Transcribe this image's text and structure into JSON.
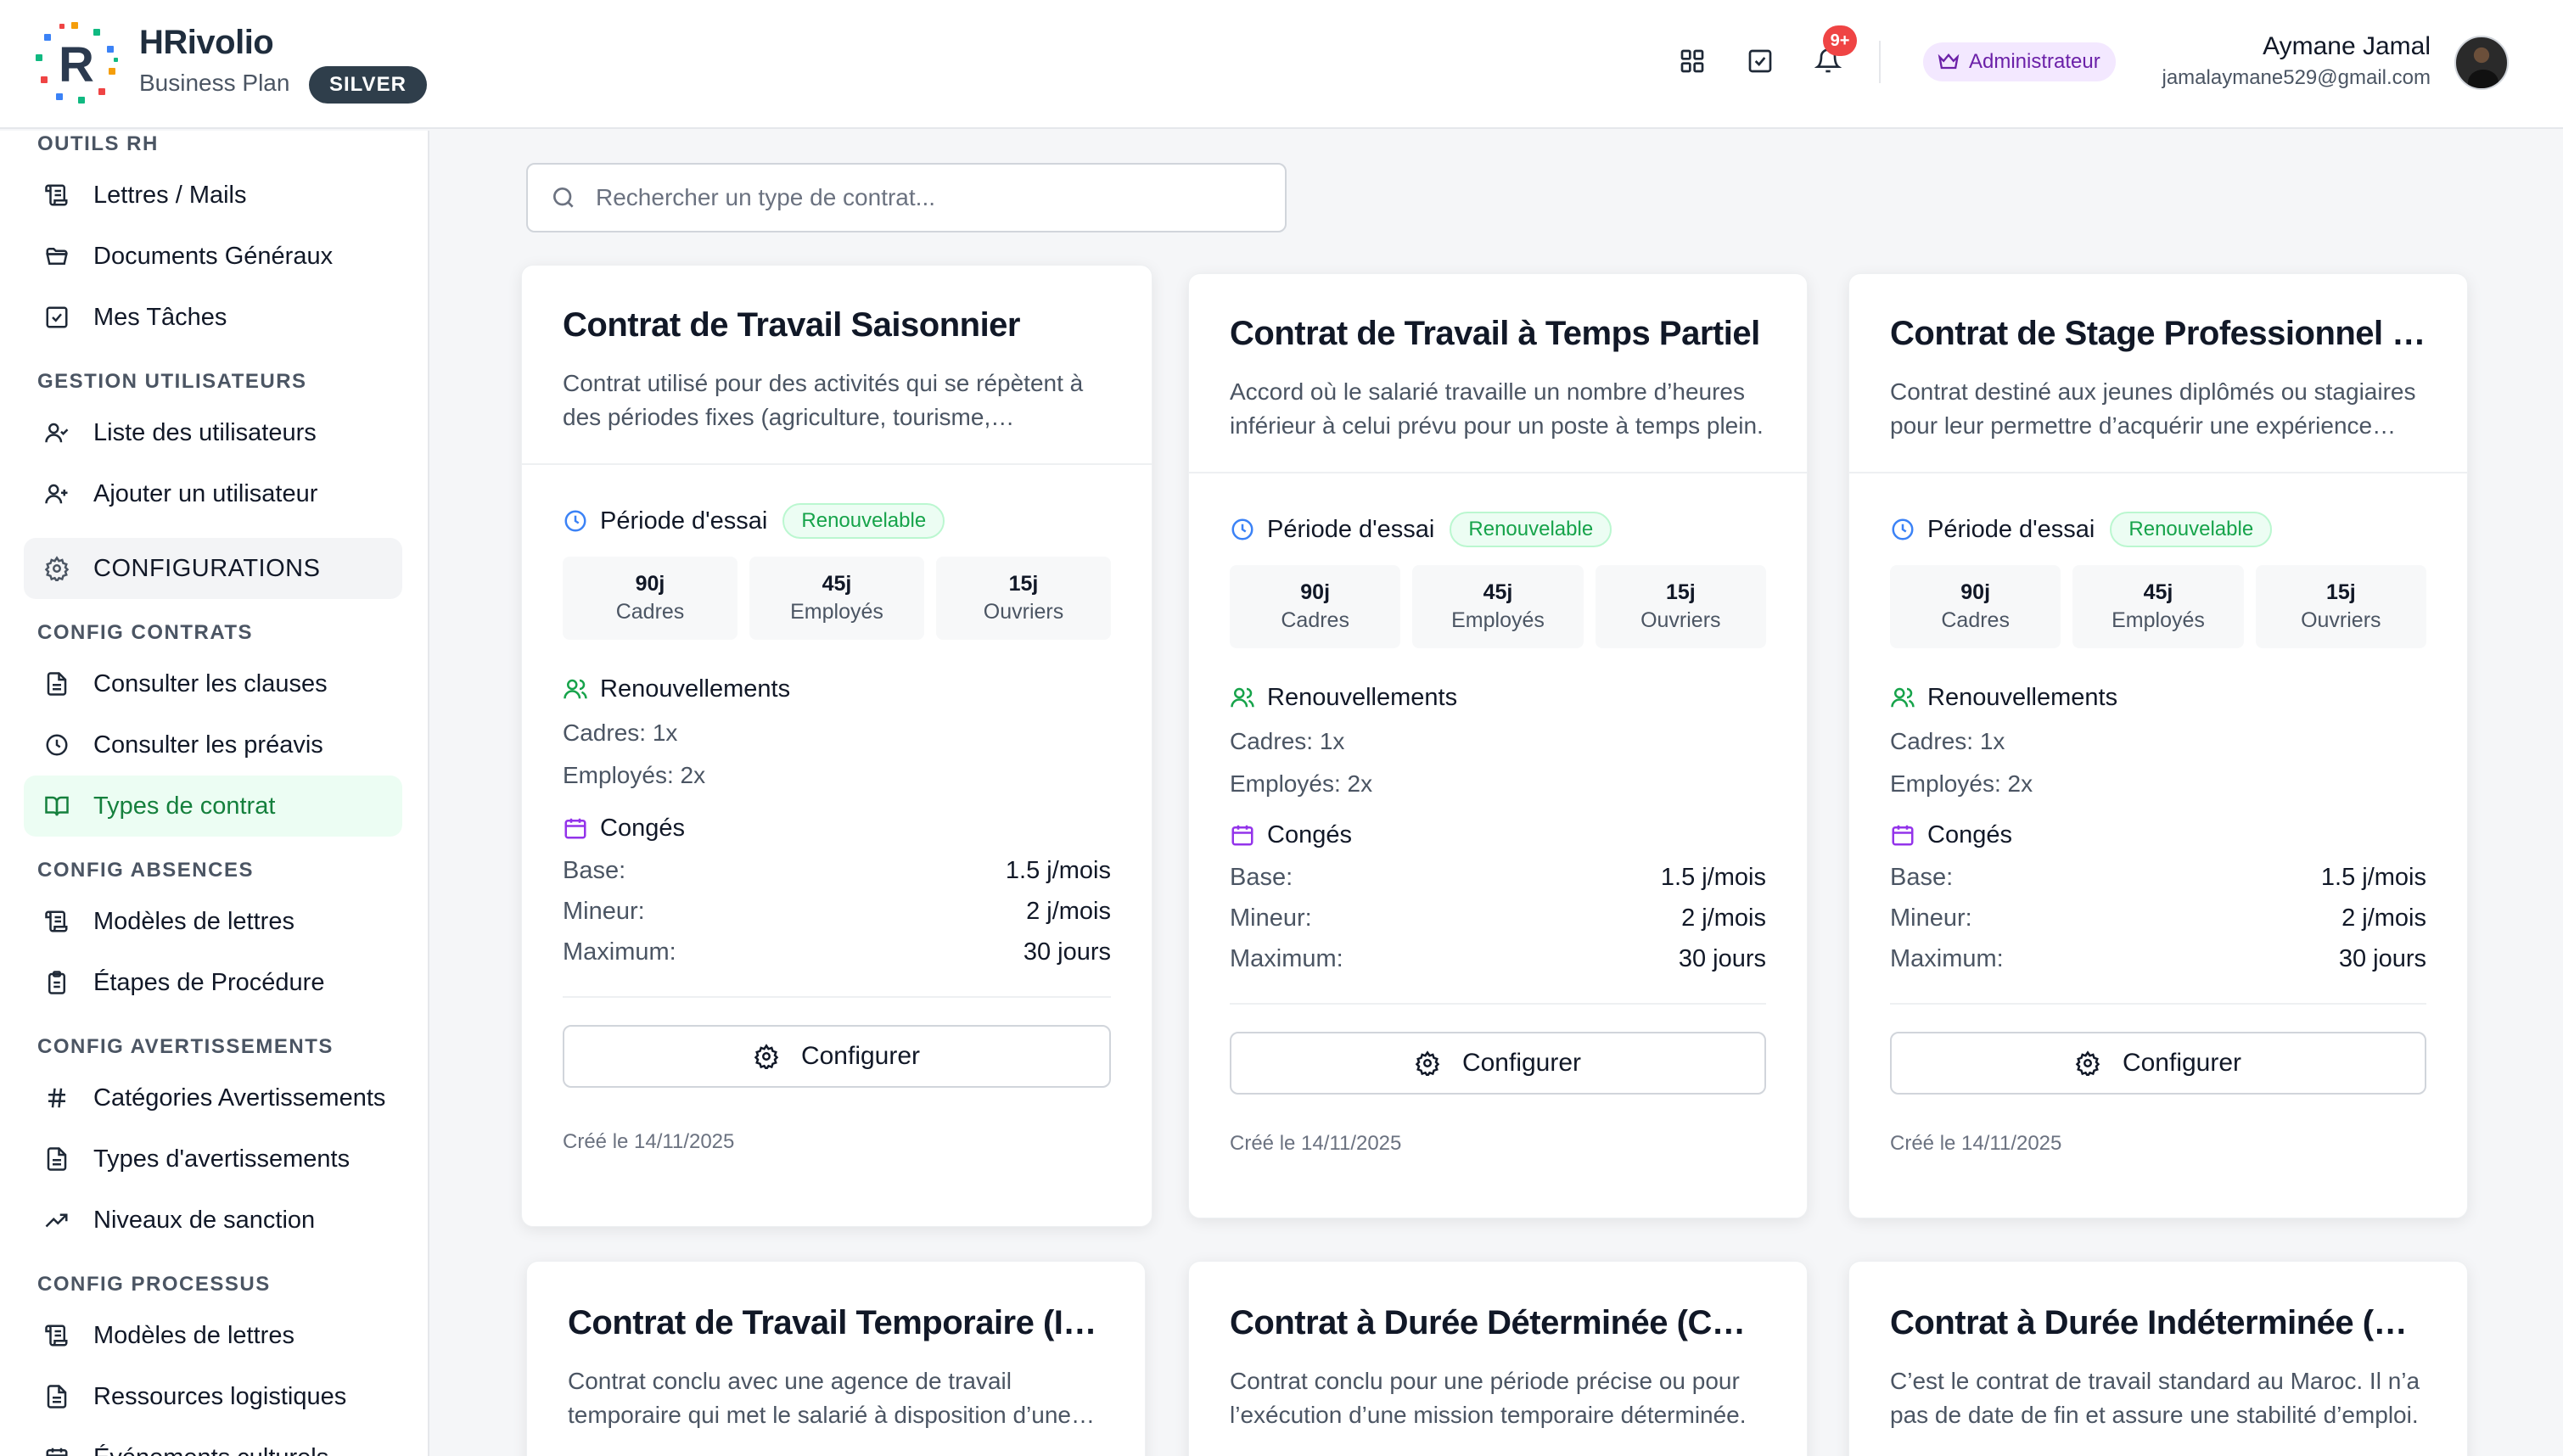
{
  "brand": {
    "name_prefix": "HR",
    "name_suffix": "ivolio",
    "plan": "Business Plan",
    "tier": "SILVER"
  },
  "header": {
    "notifications_count": "9+",
    "role": "Administrateur",
    "user_name": "Aymane Jamal",
    "user_email": "jamalaymane529@gmail.com"
  },
  "sidebar": {
    "sections": {
      "outils_rh": "OUTILS RH",
      "gestion_utilisateurs": "GESTION UTILISATEURS",
      "config_contrats": "CONFIG CONTRATS",
      "config_absences": "CONFIG ABSENCES",
      "config_avertissements": "CONFIG AVERTISSEMENTS",
      "config_processus": "CONFIG PROCESSUS"
    },
    "items": {
      "lettres_mails": "Lettres / Mails",
      "documents_generaux": "Documents Généraux",
      "mes_taches": "Mes Tâches",
      "liste_utilisateurs": "Liste des utilisateurs",
      "ajouter_utilisateur": "Ajouter un utilisateur",
      "configurations": "CONFIGURATIONS",
      "consulter_clauses": "Consulter les clauses",
      "consulter_preavis": "Consulter les préavis",
      "types_contrat": "Types de contrat",
      "modeles_lettres_abs": "Modèles de lettres",
      "etapes_procedure": "Étapes de Procédure",
      "categories_avert": "Catégories Avertissements",
      "types_avert": "Types d'avertissements",
      "niveaux_sanction": "Niveaux de sanction",
      "modeles_lettres_proc": "Modèles de lettres",
      "ressources_logistiques": "Ressources logistiques",
      "evenements_culturels": "Événements culturels"
    }
  },
  "search": {
    "placeholder": "Rechercher un type de contrat..."
  },
  "labels": {
    "periode_essai": "Période d'essai",
    "renouvelable": "Renouvelable",
    "renouvellements": "Renouvellements",
    "conges": "Congés",
    "base": "Base:",
    "mineur": "Mineur:",
    "maximum": "Maximum:",
    "configurer": "Configurer",
    "cadres": "Cadres",
    "employes": "Employés",
    "ouvriers": "Ouvriers"
  },
  "cards": [
    {
      "title": "Contrat de Travail Saisonnier",
      "description": "Contrat utilisé pour des activités qui se répètent à des périodes fixes (agriculture, tourisme, hôtellerie...).",
      "trial": {
        "cadres": "90j",
        "employes": "45j",
        "ouvriers": "15j"
      },
      "renew_cadres": "Cadres: 1x",
      "renew_employes": "Employés: 2x",
      "base": "1.5 j/mois",
      "mineur": "2 j/mois",
      "maximum": "30 jours",
      "created": "Créé le 14/11/2025"
    },
    {
      "title": "Contrat de Travail à Temps Partiel",
      "description": "Accord où le salarié travaille un nombre d’heures inférieur à celui prévu pour un poste à temps plein.",
      "trial": {
        "cadres": "90j",
        "employes": "45j",
        "ouvriers": "15j"
      },
      "renew_cadres": "Cadres: 1x",
      "renew_employes": "Employés: 2x",
      "base": "1.5 j/mois",
      "mineur": "2 j/mois",
      "maximum": "30 jours",
      "created": "Créé le 14/11/2025"
    },
    {
      "title": "Contrat de Stage Professionnel (ANAPEC)",
      "description": "Contrat destiné aux jeunes diplômés ou stagiaires pour leur permettre d’acquérir une expérience professionnelle.",
      "trial": {
        "cadres": "90j",
        "employes": "45j",
        "ouvriers": "15j"
      },
      "renew_cadres": "Cadres: 1x",
      "renew_employes": "Employés: 2x",
      "base": "1.5 j/mois",
      "mineur": "2 j/mois",
      "maximum": "30 jours",
      "created": "Créé le 14/11/2025"
    },
    {
      "title": "Contrat de Travail Temporaire (Intérim)",
      "description": "Contrat conclu avec une agence de travail temporaire qui met le salarié à disposition d’une entreprise utilisatrice."
    },
    {
      "title": "Contrat à Durée Déterminée (CDD)",
      "description": "Contrat conclu pour une période précise ou pour l’exécution d’une mission temporaire déterminée."
    },
    {
      "title": "Contrat à Durée Indéterminée (CDI)",
      "description": "C’est le contrat de travail standard au Maroc. Il n’a pas de date de fin et assure une stabilité d’emploi."
    }
  ]
}
